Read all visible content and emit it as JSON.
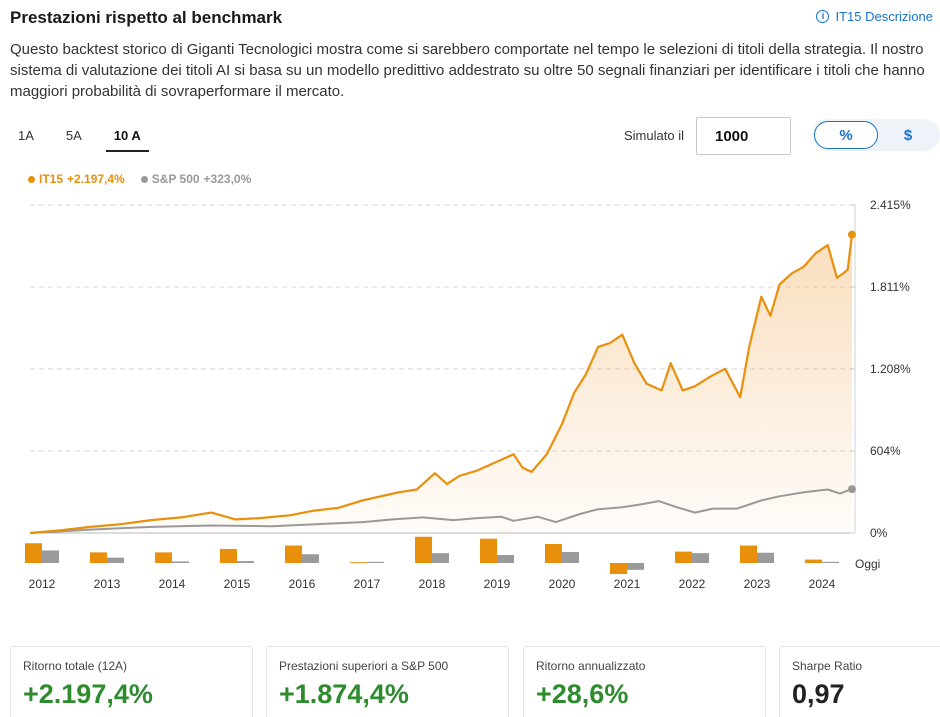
{
  "header": {
    "title": "Prestazioni rispetto al benchmark",
    "description_link": "IT15 Descrizione",
    "info_icon": "i"
  },
  "description": "Questo backtest storico di Giganti Tecnologici mostra come si sarebbero comportate nel tempo le selezioni di titoli della strategia. Il nostro sistema di valutazione dei titoli AI si basa su un modello predittivo addestrato su oltre 50 segnali finanziari per identificare i titoli che hanno maggiori probabilità di sovraperformare il mercato.",
  "tabs": [
    {
      "label": "1A",
      "active": false
    },
    {
      "label": "5A",
      "active": false
    },
    {
      "label": "10 A",
      "active": true
    }
  ],
  "simulator": {
    "label": "Simulato il",
    "value": "1000"
  },
  "toggle": {
    "percent_label": "%",
    "dollar_label": "$",
    "selected": "%"
  },
  "legend": {
    "it15": {
      "name": "IT15",
      "value": "+2.197,4%",
      "color": "#e8900c"
    },
    "sp500": {
      "name": "S&P 500",
      "value": "+323,0%",
      "color": "#999999"
    }
  },
  "chart_data": {
    "type": "line",
    "ylim": [
      0,
      2415
    ],
    "y_ticks": [
      {
        "value": 0,
        "label": "0%"
      },
      {
        "value": 604,
        "label": "604%"
      },
      {
        "value": 1208,
        "label": "1.208%"
      },
      {
        "value": 1811,
        "label": "1.811%"
      },
      {
        "value": 2415,
        "label": "2.415%"
      }
    ],
    "x_range": [
      2011.5,
      2025.15
    ],
    "series": [
      {
        "name": "IT15",
        "color": "#e8900c",
        "points": [
          [
            2011.5,
            0
          ],
          [
            2012.0,
            20
          ],
          [
            2012.5,
            45
          ],
          [
            2013.0,
            65
          ],
          [
            2013.5,
            95
          ],
          [
            2014.0,
            115
          ],
          [
            2014.5,
            150
          ],
          [
            2014.9,
            100
          ],
          [
            2015.3,
            110
          ],
          [
            2015.8,
            130
          ],
          [
            2016.2,
            165
          ],
          [
            2016.6,
            185
          ],
          [
            2017.0,
            240
          ],
          [
            2017.4,
            280
          ],
          [
            2017.6,
            300
          ],
          [
            2017.9,
            320
          ],
          [
            2018.2,
            440
          ],
          [
            2018.4,
            360
          ],
          [
            2018.6,
            420
          ],
          [
            2018.9,
            460
          ],
          [
            2019.0,
            480
          ],
          [
            2019.3,
            540
          ],
          [
            2019.5,
            580
          ],
          [
            2019.65,
            480
          ],
          [
            2019.8,
            450
          ],
          [
            2020.05,
            580
          ],
          [
            2020.3,
            800
          ],
          [
            2020.5,
            1030
          ],
          [
            2020.7,
            1170
          ],
          [
            2020.9,
            1370
          ],
          [
            2021.1,
            1400
          ],
          [
            2021.3,
            1460
          ],
          [
            2021.5,
            1250
          ],
          [
            2021.7,
            1100
          ],
          [
            2021.95,
            1050
          ],
          [
            2022.1,
            1250
          ],
          [
            2022.3,
            1050
          ],
          [
            2022.5,
            1080
          ],
          [
            2022.75,
            1150
          ],
          [
            2023.0,
            1210
          ],
          [
            2023.25,
            1000
          ],
          [
            2023.4,
            1370
          ],
          [
            2023.6,
            1740
          ],
          [
            2023.75,
            1600
          ],
          [
            2023.9,
            1830
          ],
          [
            2024.1,
            1910
          ],
          [
            2024.3,
            1960
          ],
          [
            2024.5,
            2060
          ],
          [
            2024.7,
            2120
          ],
          [
            2024.85,
            1880
          ],
          [
            2024.95,
            1910
          ],
          [
            2025.03,
            1940
          ],
          [
            2025.1,
            2197
          ]
        ]
      },
      {
        "name": "S&P 500",
        "color": "#999999",
        "points": [
          [
            2011.5,
            0
          ],
          [
            2012.5,
            25
          ],
          [
            2013.5,
            45
          ],
          [
            2014.5,
            55
          ],
          [
            2015.5,
            50
          ],
          [
            2016.0,
            60
          ],
          [
            2016.5,
            70
          ],
          [
            2017.0,
            80
          ],
          [
            2017.5,
            100
          ],
          [
            2018.0,
            115
          ],
          [
            2018.5,
            95
          ],
          [
            2018.9,
            110
          ],
          [
            2019.3,
            120
          ],
          [
            2019.5,
            90
          ],
          [
            2019.9,
            120
          ],
          [
            2020.2,
            80
          ],
          [
            2020.6,
            140
          ],
          [
            2020.9,
            175
          ],
          [
            2021.3,
            190
          ],
          [
            2021.6,
            210
          ],
          [
            2021.9,
            235
          ],
          [
            2022.2,
            190
          ],
          [
            2022.5,
            150
          ],
          [
            2022.8,
            180
          ],
          [
            2023.2,
            180
          ],
          [
            2023.6,
            240
          ],
          [
            2023.9,
            270
          ],
          [
            2024.3,
            300
          ],
          [
            2024.7,
            320
          ],
          [
            2024.9,
            290
          ],
          [
            2025.1,
            323
          ]
        ]
      }
    ],
    "annual_returns": {
      "years": [
        "2012",
        "2013",
        "2014",
        "2015",
        "2016",
        "2017",
        "2018",
        "2019",
        "2020",
        "2021",
        "2022",
        "2023",
        "2024"
      ],
      "it15": [
        52,
        28,
        28,
        37,
        46,
        2,
        69,
        64,
        50,
        -29,
        30,
        46,
        9
      ],
      "sp500": [
        33,
        14,
        4,
        5,
        23,
        3,
        26,
        21,
        29,
        -18,
        26,
        27,
        3
      ],
      "today_label": "Oggi"
    }
  },
  "cards": [
    {
      "label": "Ritorno totale (12A)",
      "value": "+2.197,4%",
      "style": "green"
    },
    {
      "label": "Prestazioni superiori a S&P 500",
      "value": "+1.874,4%",
      "style": "green"
    },
    {
      "label": "Ritorno annualizzato",
      "value": "+28,6%",
      "style": "green"
    },
    {
      "label": "Sharpe Ratio",
      "value": "0,97",
      "style": "dark"
    }
  ]
}
